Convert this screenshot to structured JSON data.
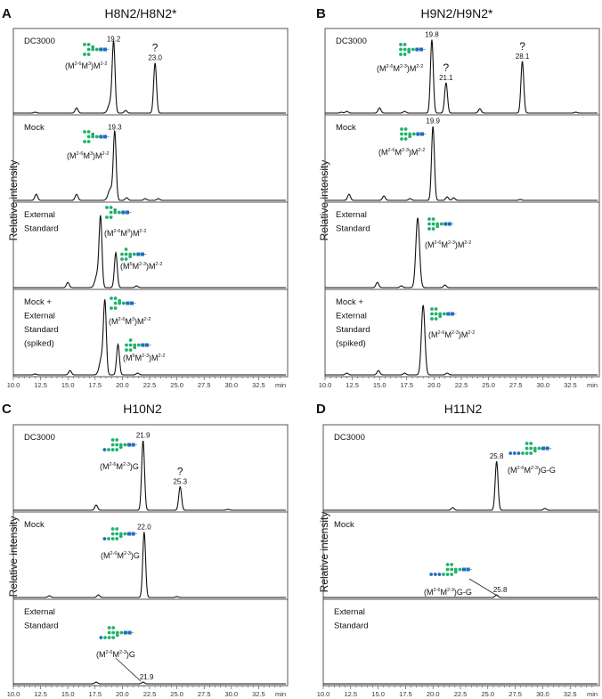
{
  "chart_data": [
    {
      "type": "line",
      "panel": "A",
      "title": "H8N2/H8N2*",
      "ylabel": "Relative intensity",
      "xlabel": "min",
      "xlim": [
        10,
        35
      ],
      "x_ticks": [
        "10.0",
        "12.5",
        "15.0",
        "17.5",
        "20.0",
        "22.5",
        "25.0",
        "27.5",
        "30.0",
        "32.5"
      ],
      "traces": [
        {
          "name_lines": [
            "DC3000"
          ],
          "peaks": [
            {
              "rt": 12.0,
              "h": 0.01
            },
            {
              "rt": 15.8,
              "h": 0.06
            },
            {
              "rt": 18.9,
              "h": 0.12,
              "w": 0.2
            },
            {
              "rt": 19.2,
              "h": 0.8
            },
            {
              "rt": 20.3,
              "h": 0.03
            },
            {
              "rt": 23.0,
              "h": 0.58
            }
          ],
          "peak_labels": [
            {
              "rt": 19.2,
              "h": 0.8,
              "text": "19.2"
            },
            {
              "rt": 23.0,
              "h": 0.58,
              "text": "23.0",
              "unknown": "?"
            }
          ],
          "glycans": [
            {
              "structure": "M8a",
              "label_parts": [
                "(M",
                "2-6",
                "M",
                "3",
                ")M",
                "2-2"
              ]
            }
          ]
        },
        {
          "name_lines": [
            "Mock"
          ],
          "peaks": [
            {
              "rt": 12.1,
              "h": 0.07
            },
            {
              "rt": 15.8,
              "h": 0.07
            },
            {
              "rt": 18.9,
              "h": 0.13,
              "w": 0.2
            },
            {
              "rt": 19.3,
              "h": 0.78
            },
            {
              "rt": 20.4,
              "h": 0.03
            },
            {
              "rt": 22.1,
              "h": 0.02
            },
            {
              "rt": 23.3,
              "h": 0.02
            }
          ],
          "peak_labels": [
            {
              "rt": 19.3,
              "h": 0.78,
              "text": "19.3"
            }
          ],
          "glycans": [
            {
              "structure": "M8a",
              "label_parts": [
                "(M",
                "2-6",
                "M",
                "3",
                ")M",
                "2-2"
              ]
            }
          ]
        },
        {
          "name_lines": [
            "External",
            "Standard"
          ],
          "peaks": [
            {
              "rt": 15.0,
              "h": 0.06
            },
            {
              "rt": 17.7,
              "h": 0.15,
              "w": 0.2
            },
            {
              "rt": 18.0,
              "h": 0.78
            },
            {
              "rt": 19.4,
              "h": 0.4
            },
            {
              "rt": 21.3,
              "h": 0.02
            }
          ],
          "peak_labels": [],
          "glycans": [
            {
              "structure": "M8a",
              "label_parts": [
                "(M",
                "2-6",
                "M",
                "3",
                ")M",
                "2-2"
              ]
            },
            {
              "structure": "M8b",
              "label_parts": [
                "(M",
                "6",
                "M",
                "2-3",
                ")M",
                "2-2"
              ]
            }
          ]
        },
        {
          "name_lines": [
            "Mock +",
            "External",
            "Standard",
            "(spiked)"
          ],
          "peaks": [
            {
              "rt": 12.0,
              "h": 0.01
            },
            {
              "rt": 15.2,
              "h": 0.05
            },
            {
              "rt": 18.1,
              "h": 0.2,
              "w": 0.2
            },
            {
              "rt": 18.4,
              "h": 0.8
            },
            {
              "rt": 19.6,
              "h": 0.35
            },
            {
              "rt": 21.4,
              "h": 0.02
            }
          ],
          "peak_labels": [],
          "glycans": [
            {
              "structure": "M8a",
              "label_parts": [
                "(M",
                "2-6",
                "M",
                "3",
                ")M",
                "2-2"
              ]
            },
            {
              "structure": "M8b",
              "label_parts": [
                "(M",
                "6",
                "M",
                "2-3",
                ")M",
                "2-2"
              ]
            }
          ]
        }
      ]
    },
    {
      "type": "line",
      "panel": "B",
      "title": "H9N2/H9N2*",
      "ylabel": "Relative intensity",
      "xlabel": "min",
      "xlim": [
        10,
        35
      ],
      "x_ticks": [
        "10.0",
        "12.5",
        "15.0",
        "17.5",
        "20.0",
        "22.5",
        "25.0",
        "27.5",
        "30.0",
        "32.5"
      ],
      "traces": [
        {
          "name_lines": [
            "DC3000"
          ],
          "peaks": [
            {
              "rt": 11.5,
              "h": 0.01
            },
            {
              "rt": 12.0,
              "h": 0.02
            },
            {
              "rt": 15.0,
              "h": 0.06
            },
            {
              "rt": 17.3,
              "h": 0.02
            },
            {
              "rt": 19.8,
              "h": 0.85
            },
            {
              "rt": 21.1,
              "h": 0.35
            },
            {
              "rt": 24.2,
              "h": 0.05
            },
            {
              "rt": 28.1,
              "h": 0.6
            },
            {
              "rt": 33.0,
              "h": 0.01
            }
          ],
          "peak_labels": [
            {
              "rt": 19.8,
              "h": 0.85,
              "text": "19.8"
            },
            {
              "rt": 21.1,
              "h": 0.35,
              "text": "21.1",
              "unknown": "?"
            },
            {
              "rt": 28.1,
              "h": 0.6,
              "text": "28.1",
              "unknown": "?"
            }
          ],
          "glycans": [
            {
              "structure": "M9",
              "label_parts": [
                "(M",
                "2-6",
                "M",
                "2-3",
                ")M",
                "2-2"
              ]
            }
          ]
        },
        {
          "name_lines": [
            "Mock"
          ],
          "peaks": [
            {
              "rt": 12.2,
              "h": 0.07
            },
            {
              "rt": 15.4,
              "h": 0.05
            },
            {
              "rt": 17.8,
              "h": 0.02
            },
            {
              "rt": 19.9,
              "h": 0.85
            },
            {
              "rt": 21.2,
              "h": 0.04
            },
            {
              "rt": 21.8,
              "h": 0.03
            },
            {
              "rt": 27.9,
              "h": 0.01
            }
          ],
          "peak_labels": [
            {
              "rt": 19.9,
              "h": 0.85,
              "text": "19.9"
            }
          ],
          "glycans": [
            {
              "structure": "M9",
              "label_parts": [
                "(M",
                "2-6",
                "M",
                "2-3",
                ")M",
                "2-2"
              ]
            }
          ]
        },
        {
          "name_lines": [
            "External",
            "Standard"
          ],
          "peaks": [
            {
              "rt": 14.8,
              "h": 0.06
            },
            {
              "rt": 17.0,
              "h": 0.02
            },
            {
              "rt": 18.5,
              "h": 0.8,
              "w": 0.17
            },
            {
              "rt": 21.0,
              "h": 0.03
            }
          ],
          "peak_labels": [],
          "glycans": [
            {
              "structure": "M9",
              "label_parts": [
                "(M",
                "2-6",
                "M",
                "2-3",
                ")M",
                "2-2"
              ]
            }
          ]
        },
        {
          "name_lines": [
            "Mock +",
            "External",
            "Standard",
            "(spiked)"
          ],
          "peaks": [
            {
              "rt": 12.0,
              "h": 0.02
            },
            {
              "rt": 14.9,
              "h": 0.05
            },
            {
              "rt": 17.3,
              "h": 0.02
            },
            {
              "rt": 19.0,
              "h": 0.8,
              "w": 0.16
            },
            {
              "rt": 21.2,
              "h": 0.02
            }
          ],
          "peak_labels": [],
          "glycans": [
            {
              "structure": "M9",
              "label_parts": [
                "(M",
                "2-6",
                "M",
                "2-3",
                ")M",
                "2-2"
              ]
            }
          ]
        }
      ]
    },
    {
      "type": "line",
      "panel": "C",
      "title": "H10N2",
      "ylabel": "Relative intensity",
      "xlabel": "min",
      "xlim": [
        10,
        35
      ],
      "x_ticks": [
        "10.0",
        "12.5",
        "15.0",
        "17.5",
        "20.0",
        "22.5",
        "25.0",
        "27.5",
        "30.0",
        "32.5"
      ],
      "traces": [
        {
          "name_lines": [
            "DC3000"
          ],
          "peaks": [
            {
              "rt": 17.6,
              "h": 0.06
            },
            {
              "rt": 21.9,
              "h": 0.8
            },
            {
              "rt": 25.3,
              "h": 0.27
            },
            {
              "rt": 29.7,
              "h": 0.01
            }
          ],
          "peak_labels": [
            {
              "rt": 21.9,
              "h": 0.8,
              "text": "21.9"
            },
            {
              "rt": 25.3,
              "h": 0.27,
              "text": "25.3",
              "unknown": "?"
            }
          ],
          "glycans": [
            {
              "structure": "G10",
              "label_parts": [
                "(M",
                "2-6",
                "M",
                "2-3",
                ")G"
              ]
            }
          ]
        },
        {
          "name_lines": [
            "Mock"
          ],
          "peaks": [
            {
              "rt": 13.3,
              "h": 0.02
            },
            {
              "rt": 17.8,
              "h": 0.03
            },
            {
              "rt": 22.0,
              "h": 0.75
            },
            {
              "rt": 25.0,
              "h": 0.01
            }
          ],
          "peak_labels": [
            {
              "rt": 22.0,
              "h": 0.75,
              "text": "22.0"
            }
          ],
          "glycans": [
            {
              "structure": "G10",
              "label_parts": [
                "(M",
                "2-6",
                "M",
                "2-3",
                ")G"
              ]
            }
          ]
        },
        {
          "name_lines": [
            "External",
            "Standard"
          ],
          "peaks": [
            {
              "rt": 17.6,
              "h": 0.02
            },
            {
              "rt": 21.9,
              "h": 0.02
            }
          ],
          "peak_labels": [
            {
              "rt": 21.9,
              "h": 0.02,
              "text": "21.9"
            }
          ],
          "glycans": [
            {
              "structure": "G10",
              "label_parts": [
                "(M",
                "2-6",
                "M",
                "2-3",
                ")G"
              ]
            }
          ]
        }
      ]
    },
    {
      "type": "line",
      "panel": "D",
      "title": "H11N2",
      "ylabel": "Relative intensity",
      "xlabel": "min",
      "xlim": [
        10,
        35
      ],
      "x_ticks": [
        "10.0",
        "12.5",
        "15.0",
        "17.5",
        "20.0",
        "22.5",
        "25.0",
        "27.5",
        "30.0",
        "32.5"
      ],
      "traces": [
        {
          "name_lines": [
            "DC3000"
          ],
          "peaks": [
            {
              "rt": 21.8,
              "h": 0.03
            },
            {
              "rt": 25.8,
              "h": 0.56
            },
            {
              "rt": 30.2,
              "h": 0.02
            }
          ],
          "peak_labels": [
            {
              "rt": 25.8,
              "h": 0.56,
              "text": "25.8"
            }
          ],
          "glycans": [
            {
              "structure": "G11",
              "label_parts": [
                "(M",
                "2-6",
                "M",
                "2-3",
                ")G-G"
              ]
            }
          ]
        },
        {
          "name_lines": [
            "Mock"
          ],
          "peaks": [
            {
              "rt": 25.8,
              "h": 0.03
            }
          ],
          "peak_labels": [
            {
              "rt": 25.8,
              "h": 0.03,
              "text": "25.8"
            }
          ],
          "glycans": [
            {
              "structure": "G11",
              "label_parts": [
                "(M",
                "2-6",
                "M",
                "2-3",
                ")G-G"
              ]
            }
          ]
        },
        {
          "name_lines": [
            "External",
            "Standard"
          ],
          "peaks": [],
          "peak_labels": [],
          "glycans": []
        }
      ]
    }
  ],
  "colors": {
    "mannose": "#1fb26b",
    "glcnac": "#1d6fc0",
    "glucose": "#1d6fc0",
    "trace": "#111111"
  }
}
